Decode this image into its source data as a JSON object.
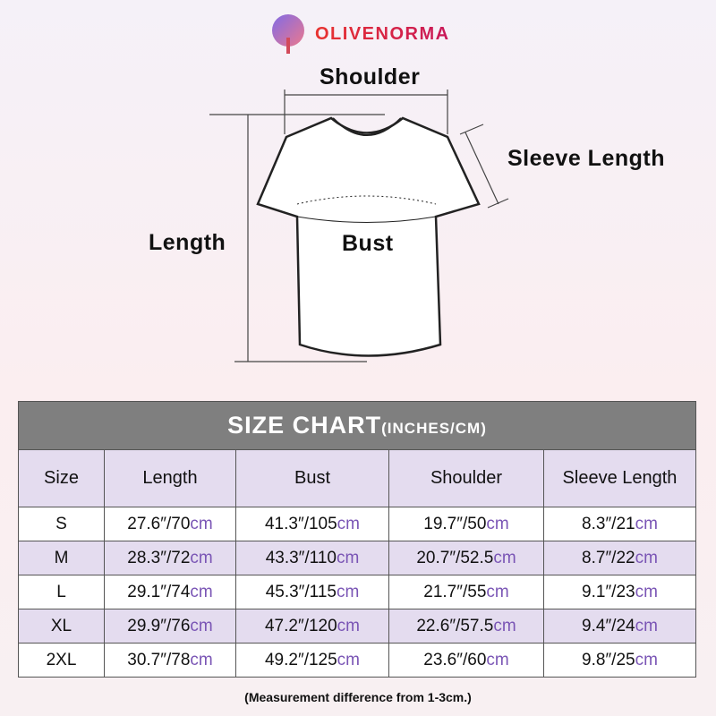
{
  "brand": "OLIVENORMA",
  "diagram": {
    "shoulder": "Shoulder",
    "sleeve_length": "Sleeve Length",
    "length": "Length",
    "bust": "Bust"
  },
  "table": {
    "title": "SIZE CHART",
    "title_units": "(INCHES/CM)",
    "headers": [
      "Size",
      "Length",
      "Bust",
      "Shoulder",
      "Sleeve Length"
    ],
    "rows": [
      {
        "size": "S",
        "cells": [
          [
            "27.6″/70",
            "cm"
          ],
          [
            "41.3″/105",
            "cm"
          ],
          [
            "19.7″/50",
            "cm"
          ],
          [
            "8.3″/21",
            "cm"
          ]
        ]
      },
      {
        "size": "M",
        "cells": [
          [
            "28.3″/72",
            "cm"
          ],
          [
            "43.3″/110",
            "cm"
          ],
          [
            "20.7″/52.5",
            "cm"
          ],
          [
            "8.7″/22",
            "cm"
          ]
        ]
      },
      {
        "size": "L",
        "cells": [
          [
            "29.1″/74",
            "cm"
          ],
          [
            "45.3″/115",
            "cm"
          ],
          [
            "21.7″/55",
            "cm"
          ],
          [
            "9.1″/23",
            "cm"
          ]
        ]
      },
      {
        "size": "XL",
        "cells": [
          [
            "29.9″/76",
            "cm"
          ],
          [
            "47.2″/120",
            "cm"
          ],
          [
            "22.6″/57.5",
            "cm"
          ],
          [
            "9.4″/24",
            "cm"
          ]
        ]
      },
      {
        "size": "2XL",
        "cells": [
          [
            "30.7″/78",
            "cm"
          ],
          [
            "49.2″/125",
            "cm"
          ],
          [
            "23.6″/60",
            "cm"
          ],
          [
            "9.8″/25",
            "cm"
          ]
        ]
      }
    ]
  },
  "note": "(Measurement difference from 1-3cm.)",
  "colors": {
    "header_bg": "#7f7f7f",
    "alt_row": "#e4dcef",
    "cm_text": "#7a55b5"
  }
}
